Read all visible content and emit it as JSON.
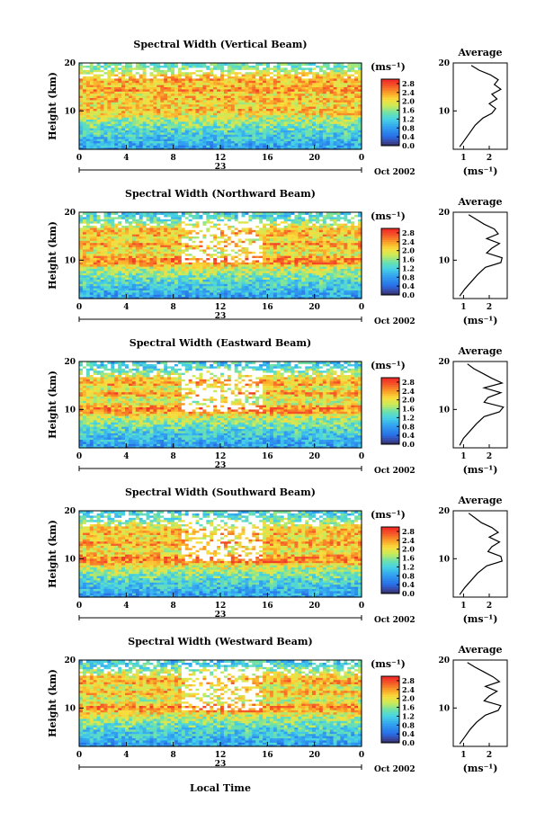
{
  "figure": {
    "x_title": "Local Time",
    "month_label": "Oct 2002",
    "day_label": "23",
    "colorbar_unit": "(ms⁻¹)",
    "profile_title": "Average",
    "profile_xlabel": "(ms⁻¹)"
  },
  "chart_data": [
    {
      "type": "heatmap",
      "title": "Spectral Width (Vertical Beam)",
      "xlabel": "Local Time",
      "ylabel": "Height (km)",
      "xlim": [
        0,
        24
      ],
      "ylim": [
        2,
        20
      ],
      "xticks": [
        "0",
        "4",
        "8",
        "12",
        "16",
        "20",
        "0"
      ],
      "yticks": [
        "10",
        "20"
      ],
      "colorbar": {
        "unit": "(ms⁻¹)",
        "range": [
          0,
          3
        ],
        "ticks": [
          "0.0",
          "0.4",
          "0.8",
          "1.2",
          "1.6",
          "2.0",
          "2.4",
          "2.8"
        ]
      },
      "profile": {
        "title": "Average",
        "xlabel": "(ms⁻¹)",
        "xlim": [
          0.6,
          2.7
        ],
        "xticks": [
          "1",
          "2"
        ],
        "ylim": [
          2,
          20
        ],
        "yticks": [
          "10",
          "20"
        ],
        "height": [
          2.5,
          4,
          5.5,
          7,
          8.5,
          9.5,
          10.5,
          11.5,
          12.5,
          13.5,
          14.5,
          15.5,
          16.5,
          17.5,
          18.5,
          19.5
        ],
        "width": [
          0.85,
          1.05,
          1.25,
          1.45,
          1.75,
          2.1,
          2.25,
          2.0,
          2.3,
          2.1,
          2.45,
          2.2,
          2.35,
          2.05,
          1.6,
          1.3
        ]
      }
    },
    {
      "type": "heatmap",
      "title": "Spectral Width (Northward Beam)",
      "xlabel": "Local Time",
      "ylabel": "Height (km)",
      "xlim": [
        0,
        24
      ],
      "ylim": [
        2,
        20
      ],
      "xticks": [
        "0",
        "4",
        "8",
        "12",
        "16",
        "20",
        "0"
      ],
      "yticks": [
        "10",
        "20"
      ],
      "colorbar": {
        "unit": "(ms⁻¹)",
        "range": [
          0,
          3
        ],
        "ticks": [
          "0.0",
          "0.4",
          "0.8",
          "1.2",
          "1.6",
          "2.0",
          "2.4",
          "2.8"
        ]
      },
      "profile": {
        "title": "Average",
        "xlabel": "(ms⁻¹)",
        "xlim": [
          0.6,
          2.7
        ],
        "xticks": [
          "1",
          "2"
        ],
        "ylim": [
          2,
          20
        ],
        "yticks": [
          "10",
          "20"
        ],
        "height": [
          2.5,
          4,
          5.5,
          7,
          8.5,
          9.5,
          10.5,
          11.5,
          12.5,
          13.5,
          14.5,
          15.5,
          16.5,
          17.5,
          18.5,
          19.5
        ],
        "width": [
          0.85,
          1.05,
          1.3,
          1.55,
          1.85,
          2.45,
          2.5,
          1.9,
          2.1,
          2.4,
          1.9,
          2.35,
          2.2,
          1.8,
          1.5,
          1.2
        ]
      }
    },
    {
      "type": "heatmap",
      "title": "Spectral Width (Eastward Beam)",
      "xlabel": "Local Time",
      "ylabel": "Height (km)",
      "xlim": [
        0,
        24
      ],
      "ylim": [
        2,
        20
      ],
      "xticks": [
        "0",
        "4",
        "8",
        "12",
        "16",
        "20",
        "0"
      ],
      "yticks": [
        "10",
        "20"
      ],
      "colorbar": {
        "unit": "(ms⁻¹)",
        "range": [
          0,
          3
        ],
        "ticks": [
          "0.0",
          "0.4",
          "0.8",
          "1.2",
          "1.6",
          "2.0",
          "2.4",
          "2.8"
        ]
      },
      "profile": {
        "title": "Average",
        "xlabel": "(ms⁻¹)",
        "xlim": [
          0.6,
          2.7
        ],
        "xticks": [
          "1",
          "2"
        ],
        "ylim": [
          2,
          20
        ],
        "yticks": [
          "10",
          "20"
        ],
        "height": [
          2.5,
          4,
          5.5,
          7,
          8.5,
          9.5,
          10.5,
          11.5,
          12.5,
          13.5,
          14.5,
          15.5,
          16.5,
          17.5,
          18.5,
          19.5
        ],
        "width": [
          0.85,
          1.0,
          1.25,
          1.5,
          1.8,
          2.4,
          2.55,
          1.8,
          1.95,
          2.45,
          1.8,
          2.5,
          2.1,
          1.75,
          1.4,
          1.15
        ]
      }
    },
    {
      "type": "heatmap",
      "title": "Spectral Width (Southward Beam)",
      "xlabel": "Local Time",
      "ylabel": "Height (km)",
      "xlim": [
        0,
        24
      ],
      "ylim": [
        2,
        20
      ],
      "xticks": [
        "0",
        "4",
        "8",
        "12",
        "16",
        "20",
        "0"
      ],
      "yticks": [
        "10",
        "20"
      ],
      "colorbar": {
        "unit": "(ms⁻¹)",
        "range": [
          0,
          3
        ],
        "ticks": [
          "0.0",
          "0.4",
          "0.8",
          "1.2",
          "1.6",
          "2.0",
          "2.4",
          "2.8"
        ]
      },
      "profile": {
        "title": "Average",
        "xlabel": "(ms⁻¹)",
        "xlim": [
          0.6,
          2.7
        ],
        "xticks": [
          "1",
          "2"
        ],
        "ylim": [
          2,
          20
        ],
        "yticks": [
          "10",
          "20"
        ],
        "height": [
          2.5,
          4,
          5.5,
          7,
          8.5,
          9.5,
          10.5,
          11.5,
          12.5,
          13.5,
          14.5,
          15.5,
          16.5,
          17.5,
          18.5,
          19.5
        ],
        "width": [
          0.85,
          1.05,
          1.3,
          1.55,
          1.9,
          2.5,
          2.45,
          1.95,
          2.1,
          2.4,
          2.0,
          2.35,
          2.1,
          1.7,
          1.45,
          1.2
        ]
      }
    },
    {
      "type": "heatmap",
      "title": "Spectral Width (Westward Beam)",
      "xlabel": "Local Time",
      "ylabel": "Height (km)",
      "xlim": [
        0,
        24
      ],
      "ylim": [
        2,
        20
      ],
      "xticks": [
        "0",
        "4",
        "8",
        "12",
        "16",
        "20",
        "0"
      ],
      "yticks": [
        "10",
        "20"
      ],
      "colorbar": {
        "unit": "(ms⁻¹)",
        "range": [
          0,
          3
        ],
        "ticks": [
          "0.0",
          "0.4",
          "0.8",
          "1.2",
          "1.6",
          "2.0",
          "2.4",
          "2.8"
        ]
      },
      "profile": {
        "title": "Average",
        "xlabel": "(ms⁻¹)",
        "xlim": [
          0.6,
          2.7
        ],
        "xticks": [
          "1",
          "2"
        ],
        "ylim": [
          2,
          20
        ],
        "yticks": [
          "10",
          "20"
        ],
        "height": [
          2.5,
          4,
          5.5,
          7,
          8.5,
          9.5,
          10.5,
          11.5,
          12.5,
          13.5,
          14.5,
          15.5,
          16.5,
          17.5,
          18.5,
          19.5
        ],
        "width": [
          0.85,
          1.05,
          1.25,
          1.5,
          1.85,
          2.35,
          2.45,
          1.8,
          2.0,
          2.3,
          1.85,
          2.4,
          2.15,
          1.8,
          1.45,
          1.15
        ]
      }
    }
  ]
}
